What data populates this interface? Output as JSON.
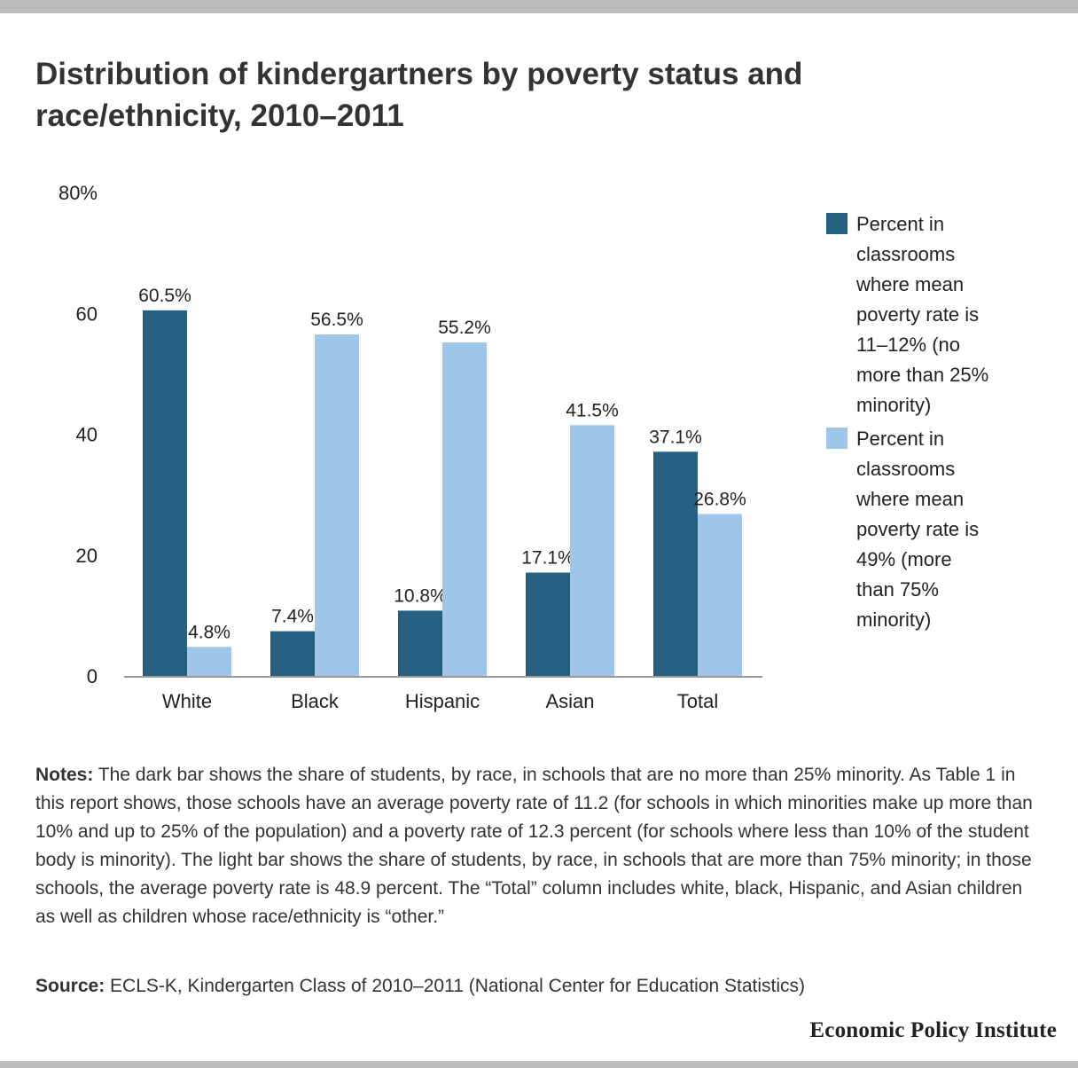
{
  "title": "Distribution of kindergartners by poverty status and race/ethnicity, 2010–2011",
  "colors": {
    "dark": "#266083",
    "light": "#9fc5e8",
    "axis": "#999999",
    "text": "#222222"
  },
  "chart_data": {
    "type": "bar",
    "categories": [
      "White",
      "Black",
      "Hispanic",
      "Asian",
      "Total"
    ],
    "series": [
      {
        "name": "Percent in classrooms where mean poverty rate is 11–12% (no more than 25% minority)",
        "values": [
          60.5,
          7.4,
          10.8,
          17.1,
          37.1
        ]
      },
      {
        "name": "Percent in classrooms where mean poverty rate is 49% (more than 75% minority)",
        "values": [
          4.8,
          56.5,
          55.2,
          41.5,
          26.8
        ]
      }
    ],
    "data_labels": [
      [
        "60.5%",
        "7.4%",
        "10.8%",
        "17.1%",
        "37.1%"
      ],
      [
        "4.8%",
        "56.5%",
        "55.2%",
        "41.5%",
        "26.8%"
      ]
    ],
    "ylim": [
      0,
      80
    ],
    "yticks": [
      0,
      20,
      40,
      60,
      80
    ],
    "ytick_labels": [
      "0",
      "20",
      "40",
      "60",
      "80%"
    ],
    "xlabel": "",
    "ylabel": "",
    "grid": false,
    "legend_position": "right"
  },
  "notes": {
    "label": "Notes:",
    "text": " The dark bar shows the share of students, by race, in schools that are no more than 25% minority. As Table 1 in this report shows, those schools have an average poverty rate of 11.2 (for schools in which minorities make up more than 10% and up to 25% of the population) and a poverty rate of 12.3 percent (for schools where less than 10% of the student body is minority). The light bar shows the share of students, by race, in schools that are more than 75% minority; in those schools, the average poverty rate is 48.9 percent. The “Total” column includes white, black, Hispanic, and Asian children as well as children whose race/ethnicity is “other.”"
  },
  "source": {
    "label": "Source:",
    "text": " ECLS-K, Kindergarten Class of 2010–2011 (National Center for Education Statistics)"
  },
  "logo": "Economic Policy Institute"
}
